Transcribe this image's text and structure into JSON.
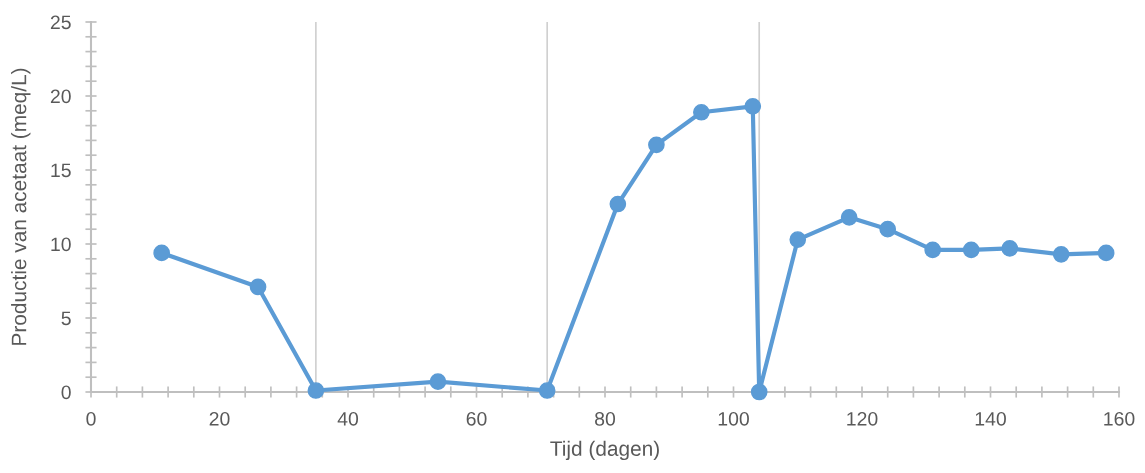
{
  "chart_data": {
    "type": "line",
    "xlabel": "Tijd (dagen)",
    "ylabel": "Productie van acetaat (meq/L)",
    "x": [
      11,
      26,
      35,
      54,
      71,
      82,
      88,
      95,
      103,
      104,
      110,
      118,
      124,
      131,
      137,
      143,
      151,
      158
    ],
    "series": [
      {
        "color": "#5b9bd5",
        "values": [
          9.4,
          7.1,
          0.1,
          0.7,
          0.1,
          12.7,
          16.7,
          18.9,
          19.3,
          0,
          10.3,
          11.8,
          11.0,
          9.6,
          9.6,
          9.7,
          9.3,
          9.4
        ]
      }
    ],
    "xlim": [
      0,
      160
    ],
    "xticks": [
      0,
      20,
      40,
      60,
      80,
      100,
      120,
      140,
      160
    ],
    "ylim": [
      0,
      25
    ],
    "yticks": [
      0,
      5,
      10,
      15,
      20,
      25
    ],
    "ref_lines": [
      {
        "axis": "x",
        "value": 35,
        "color": "#d0d0d0"
      },
      {
        "axis": "x",
        "value": 71,
        "color": "#d0d0d0"
      },
      {
        "axis": "x",
        "value": 104,
        "color": "#d0d0d0"
      }
    ],
    "marker": "circle",
    "line_style": "solid",
    "grid": false,
    "legend": false
  }
}
